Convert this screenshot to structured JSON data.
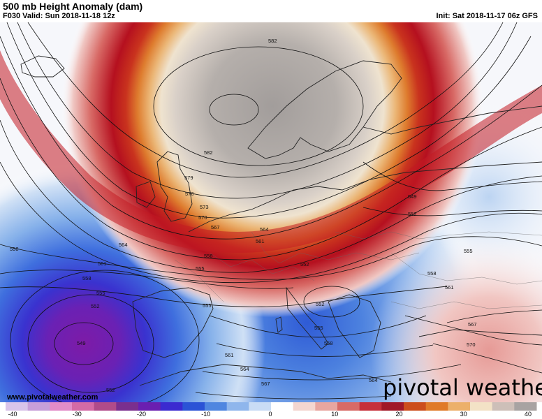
{
  "header": {
    "title": "500 mb Height Anomaly (dam)",
    "valid": "F030 Valid: Sun 2018-11-18 12z",
    "init": "Init: Sat 2018-11-17 06z GFS"
  },
  "map": {
    "region": "Europe / North Atlantic",
    "contour_labels": [
      {
        "text": "582",
        "key": "582a"
      },
      {
        "text": "582",
        "key": "582b"
      },
      {
        "text": "579",
        "key": "579"
      },
      {
        "text": "576",
        "key": "576"
      },
      {
        "text": "573",
        "key": "573"
      },
      {
        "text": "570",
        "key": "570a"
      },
      {
        "text": "567",
        "key": "567a"
      },
      {
        "text": "564",
        "key": "564a"
      },
      {
        "text": "564",
        "key": "564b"
      },
      {
        "text": "561",
        "key": "561a"
      },
      {
        "text": "561",
        "key": "561b"
      },
      {
        "text": "558",
        "key": "558a"
      },
      {
        "text": "558",
        "key": "558b"
      },
      {
        "text": "558",
        "key": "558c"
      },
      {
        "text": "555",
        "key": "555a"
      },
      {
        "text": "555",
        "key": "555b"
      },
      {
        "text": "555",
        "key": "555c"
      },
      {
        "text": "552",
        "key": "552a"
      },
      {
        "text": "552",
        "key": "552b"
      },
      {
        "text": "552",
        "key": "552c"
      },
      {
        "text": "549",
        "key": "549a"
      },
      {
        "text": "549",
        "key": "549b"
      },
      {
        "text": "552",
        "key": "552d"
      },
      {
        "text": "555",
        "key": "555d"
      },
      {
        "text": "558",
        "key": "558d"
      },
      {
        "text": "561",
        "key": "561c"
      },
      {
        "text": "567",
        "key": "567b"
      },
      {
        "text": "570",
        "key": "570b"
      },
      {
        "text": "555",
        "key": "555e"
      },
      {
        "text": "558",
        "key": "558e"
      },
      {
        "text": "561",
        "key": "561d"
      },
      {
        "text": "564",
        "key": "564c"
      },
      {
        "text": "564",
        "key": "564d"
      },
      {
        "text": "567",
        "key": "567c"
      },
      {
        "text": "552",
        "key": "552e"
      }
    ]
  },
  "footer": {
    "website": "www.pivotalweather.com",
    "brand": "pivotal weather"
  },
  "colorbar": {
    "ticks": [
      "-40",
      "-30",
      "-20",
      "-10",
      "0",
      "10",
      "20",
      "30",
      "40"
    ],
    "colors": [
      "#d9c4ea",
      "#c79fd9",
      "#e28cc8",
      "#d46aa6",
      "#b04b8a",
      "#7a2f8e",
      "#6a1fb0",
      "#3b2ad0",
      "#2b53d6",
      "#4f86e0",
      "#8fb6ec",
      "#c9dcf5",
      "#ffffff",
      "#f4d6d0",
      "#e8a6a0",
      "#d86a66",
      "#c6303a",
      "#a01828",
      "#cc4d1c",
      "#e07a28",
      "#ecb06b",
      "#f3e2c6",
      "#cdbfb8",
      "#a8a3a2"
    ]
  }
}
